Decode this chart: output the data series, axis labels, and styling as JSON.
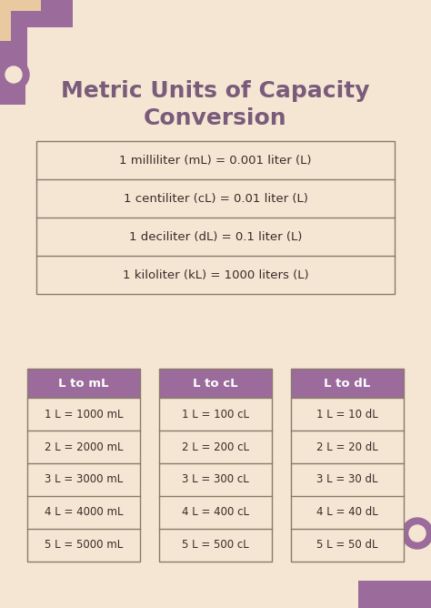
{
  "bg_color": "#f5e6d3",
  "title": "Metric Units of Capacity\nConversion",
  "title_color": "#7a5c7a",
  "title_fontsize": 18,
  "top_table_rows": [
    "1 milliliter (mL) = 0.001 liter (L)",
    "1 centiliter (cL) = 0.01 liter (L)",
    "1 deciliter (dL) = 0.1 liter (L)",
    "1 kiloliter (kL) = 1000 liters (L)"
  ],
  "top_table_border_color": "#8a7a6a",
  "top_table_text_color": "#3a2a2a",
  "top_table_row_bg": "#f5e6d3",
  "sub_tables": [
    {
      "header": "L to mL",
      "rows": [
        "1 L = 1000 mL",
        "2 L = 2000 mL",
        "3 L = 3000 mL",
        "4 L = 4000 mL",
        "5 L = 5000 mL"
      ]
    },
    {
      "header": "L to cL",
      "rows": [
        "1 L = 100 cL",
        "2 L = 200 cL",
        "3 L = 300 cL",
        "4 L = 400 cL",
        "5 L = 500 cL"
      ]
    },
    {
      "header": "L to dL",
      "rows": [
        "1 L = 10 dL",
        "2 L = 20 dL",
        "3 L = 30 dL",
        "4 L = 40 dL",
        "5 L = 50 dL"
      ]
    }
  ],
  "sub_table_header_color": "#9b6b9b",
  "sub_table_header_text_color": "#ffffff",
  "sub_table_border_color": "#8a7a6a",
  "sub_table_text_color": "#3a2a2a",
  "sub_table_row_bg": "#f5e6d3",
  "deco_color_purple": "#9b6b9b",
  "deco_color_beige": "#e8c9a0"
}
